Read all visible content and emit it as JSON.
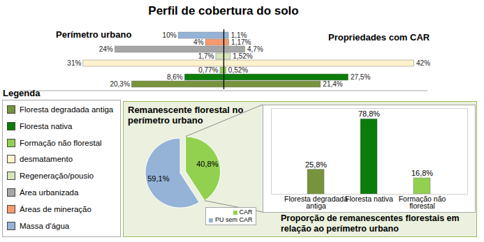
{
  "chart_data": [
    {
      "type": "bar",
      "title": "Perfil de cobertura do solo",
      "orientation": "horizontal",
      "data_labels": true,
      "tick_labels": false,
      "legend": "bottom-left",
      "legend_title": "Legenda",
      "categories": [
        "Floresta degradada antiga",
        "Floresta nativa",
        "Formação não florestal",
        "desmatamento",
        "Regeneração/pousio",
        "Área urbanizada",
        "Áreas de mineração",
        "Massa d'água"
      ],
      "colors": [
        "#77933c",
        "#0a7d0a",
        "#92d050",
        "#fff2cc",
        "#d7e4bd",
        "#a6a6a6",
        "#f79a6e",
        "#95b3d7"
      ],
      "xlim": [
        0,
        45
      ],
      "series": [
        {
          "name": "Perímetro urbano",
          "values": [
            20.3,
            8.6,
            0.77,
            31,
            1.7,
            24,
            4,
            10
          ],
          "value_labels": [
            "20,3%",
            "8,6%",
            "0,77%",
            "31%",
            "1,7%",
            "24%",
            "4%",
            "10%"
          ]
        },
        {
          "name": "Propriedades com CAR",
          "values": [
            21.4,
            27.5,
            0.52,
            42,
            1.52,
            4.7,
            1.17,
            1.1
          ],
          "value_labels": [
            "21,4%",
            "27,5%",
            "0,52%",
            "42%",
            "1,52%",
            "4,7%",
            "1,17%",
            "1,1%"
          ]
        }
      ]
    },
    {
      "type": "pie",
      "title": "Remanescente florestal no perímetro urbano",
      "categories": [
        "CAR",
        "PU sem CAR"
      ],
      "values": [
        40.8,
        59.1
      ],
      "value_labels": [
        "40,8%",
        "59,1%"
      ],
      "colors": [
        "#92d050",
        "#95b3d7"
      ],
      "data_labels": true,
      "legend": "bottom-right"
    },
    {
      "type": "bar",
      "title": "Proporção de remanescentes florestais em relação ao perímetro urbano",
      "categories": [
        "Floresta degradada antiga",
        "Floresta nativa",
        "Formação não florestal"
      ],
      "values": [
        25.8,
        78.8,
        16.8
      ],
      "value_labels": [
        "25,8%",
        "78,8%",
        "16,8%"
      ],
      "colors": [
        "#77933c",
        "#0a7d0a",
        "#92d050"
      ],
      "ylim": [
        0,
        90
      ],
      "data_labels": true,
      "tick_labels": "x"
    }
  ]
}
